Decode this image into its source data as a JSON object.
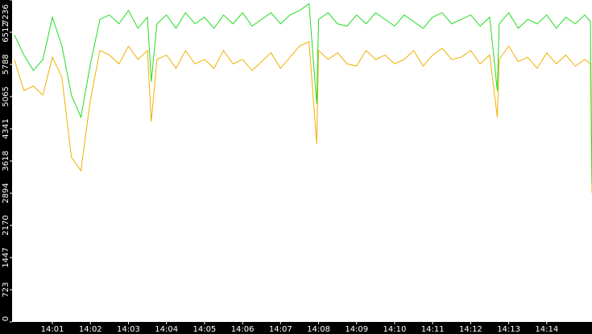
{
  "chart_data": {
    "type": "line",
    "x": [
      0,
      0.25,
      0.5,
      0.75,
      1,
      1.25,
      1.5,
      1.75,
      2,
      2.25,
      2.5,
      2.75,
      3,
      3.25,
      3.5,
      3.6,
      3.75,
      4,
      4.25,
      4.5,
      4.75,
      5,
      5.25,
      5.5,
      5.75,
      6,
      6.25,
      6.5,
      6.75,
      7,
      7.25,
      7.5,
      7.75,
      7.95,
      8,
      8.25,
      8.5,
      8.75,
      9,
      9.25,
      9.5,
      9.75,
      10,
      10.25,
      10.5,
      10.75,
      11,
      11.25,
      11.5,
      11.75,
      12,
      12.25,
      12.5,
      12.7,
      12.75,
      13,
      13.25,
      13.5,
      13.75,
      14,
      14.25,
      14.5,
      14.75,
      15,
      15.15,
      15.19
    ],
    "series": [
      {
        "color": "#22dd22",
        "values": [
          6450,
          6000,
          5650,
          5900,
          6850,
          6200,
          5100,
          4600,
          5800,
          6800,
          6900,
          6700,
          7000,
          6600,
          6850,
          5400,
          6700,
          6900,
          6600,
          6950,
          6700,
          6850,
          6600,
          6900,
          6700,
          6950,
          6650,
          6800,
          6950,
          6700,
          6900,
          7000,
          7150,
          4900,
          6800,
          6950,
          6700,
          6650,
          6900,
          6700,
          6950,
          6800,
          6650,
          6900,
          6750,
          6600,
          6850,
          6950,
          6700,
          6800,
          6900,
          6650,
          6850,
          5200,
          6700,
          6950,
          6600,
          6800,
          6700,
          6900,
          6600,
          6850,
          6700,
          6900,
          6750,
          3100
        ]
      },
      {
        "color": "#f0b000",
        "values": [
          5900,
          5200,
          5300,
          5100,
          5950,
          5500,
          3700,
          3400,
          5000,
          6100,
          6000,
          5800,
          6200,
          5900,
          6100,
          4500,
          5900,
          6000,
          5700,
          6100,
          5800,
          5900,
          5700,
          6100,
          5800,
          5900,
          5650,
          5850,
          6050,
          5700,
          5950,
          6200,
          6300,
          4000,
          6100,
          5900,
          6050,
          5800,
          5750,
          6100,
          5900,
          6000,
          5800,
          5900,
          6100,
          5750,
          6000,
          6150,
          5900,
          5950,
          6100,
          5800,
          6000,
          4600,
          5900,
          6200,
          5850,
          5950,
          5700,
          6050,
          5800,
          6000,
          5750,
          5900,
          5800,
          2900
        ]
      }
    ],
    "xlim": [
      -0.06,
      15.19
    ],
    "xticks": [
      {
        "value": 1,
        "label": "14:01"
      },
      {
        "value": 2,
        "label": "14:02"
      },
      {
        "value": 3,
        "label": "14:03"
      },
      {
        "value": 4,
        "label": "14:04"
      },
      {
        "value": 5,
        "label": "14:05"
      },
      {
        "value": 6,
        "label": "14:06"
      },
      {
        "value": 7,
        "label": "14:07"
      },
      {
        "value": 8,
        "label": "14:08"
      },
      {
        "value": 9,
        "label": "14:09"
      },
      {
        "value": 10,
        "label": "14:10"
      },
      {
        "value": 11,
        "label": "14:11"
      },
      {
        "value": 12,
        "label": "14:12"
      },
      {
        "value": 13,
        "label": "14:13"
      },
      {
        "value": 14,
        "label": "14:14"
      }
    ],
    "ylim": [
      0,
      7236
    ],
    "yticks": [
      0,
      723,
      1447,
      2170,
      2894,
      3618,
      4341,
      5065,
      5788,
      6512,
      7236
    ]
  }
}
